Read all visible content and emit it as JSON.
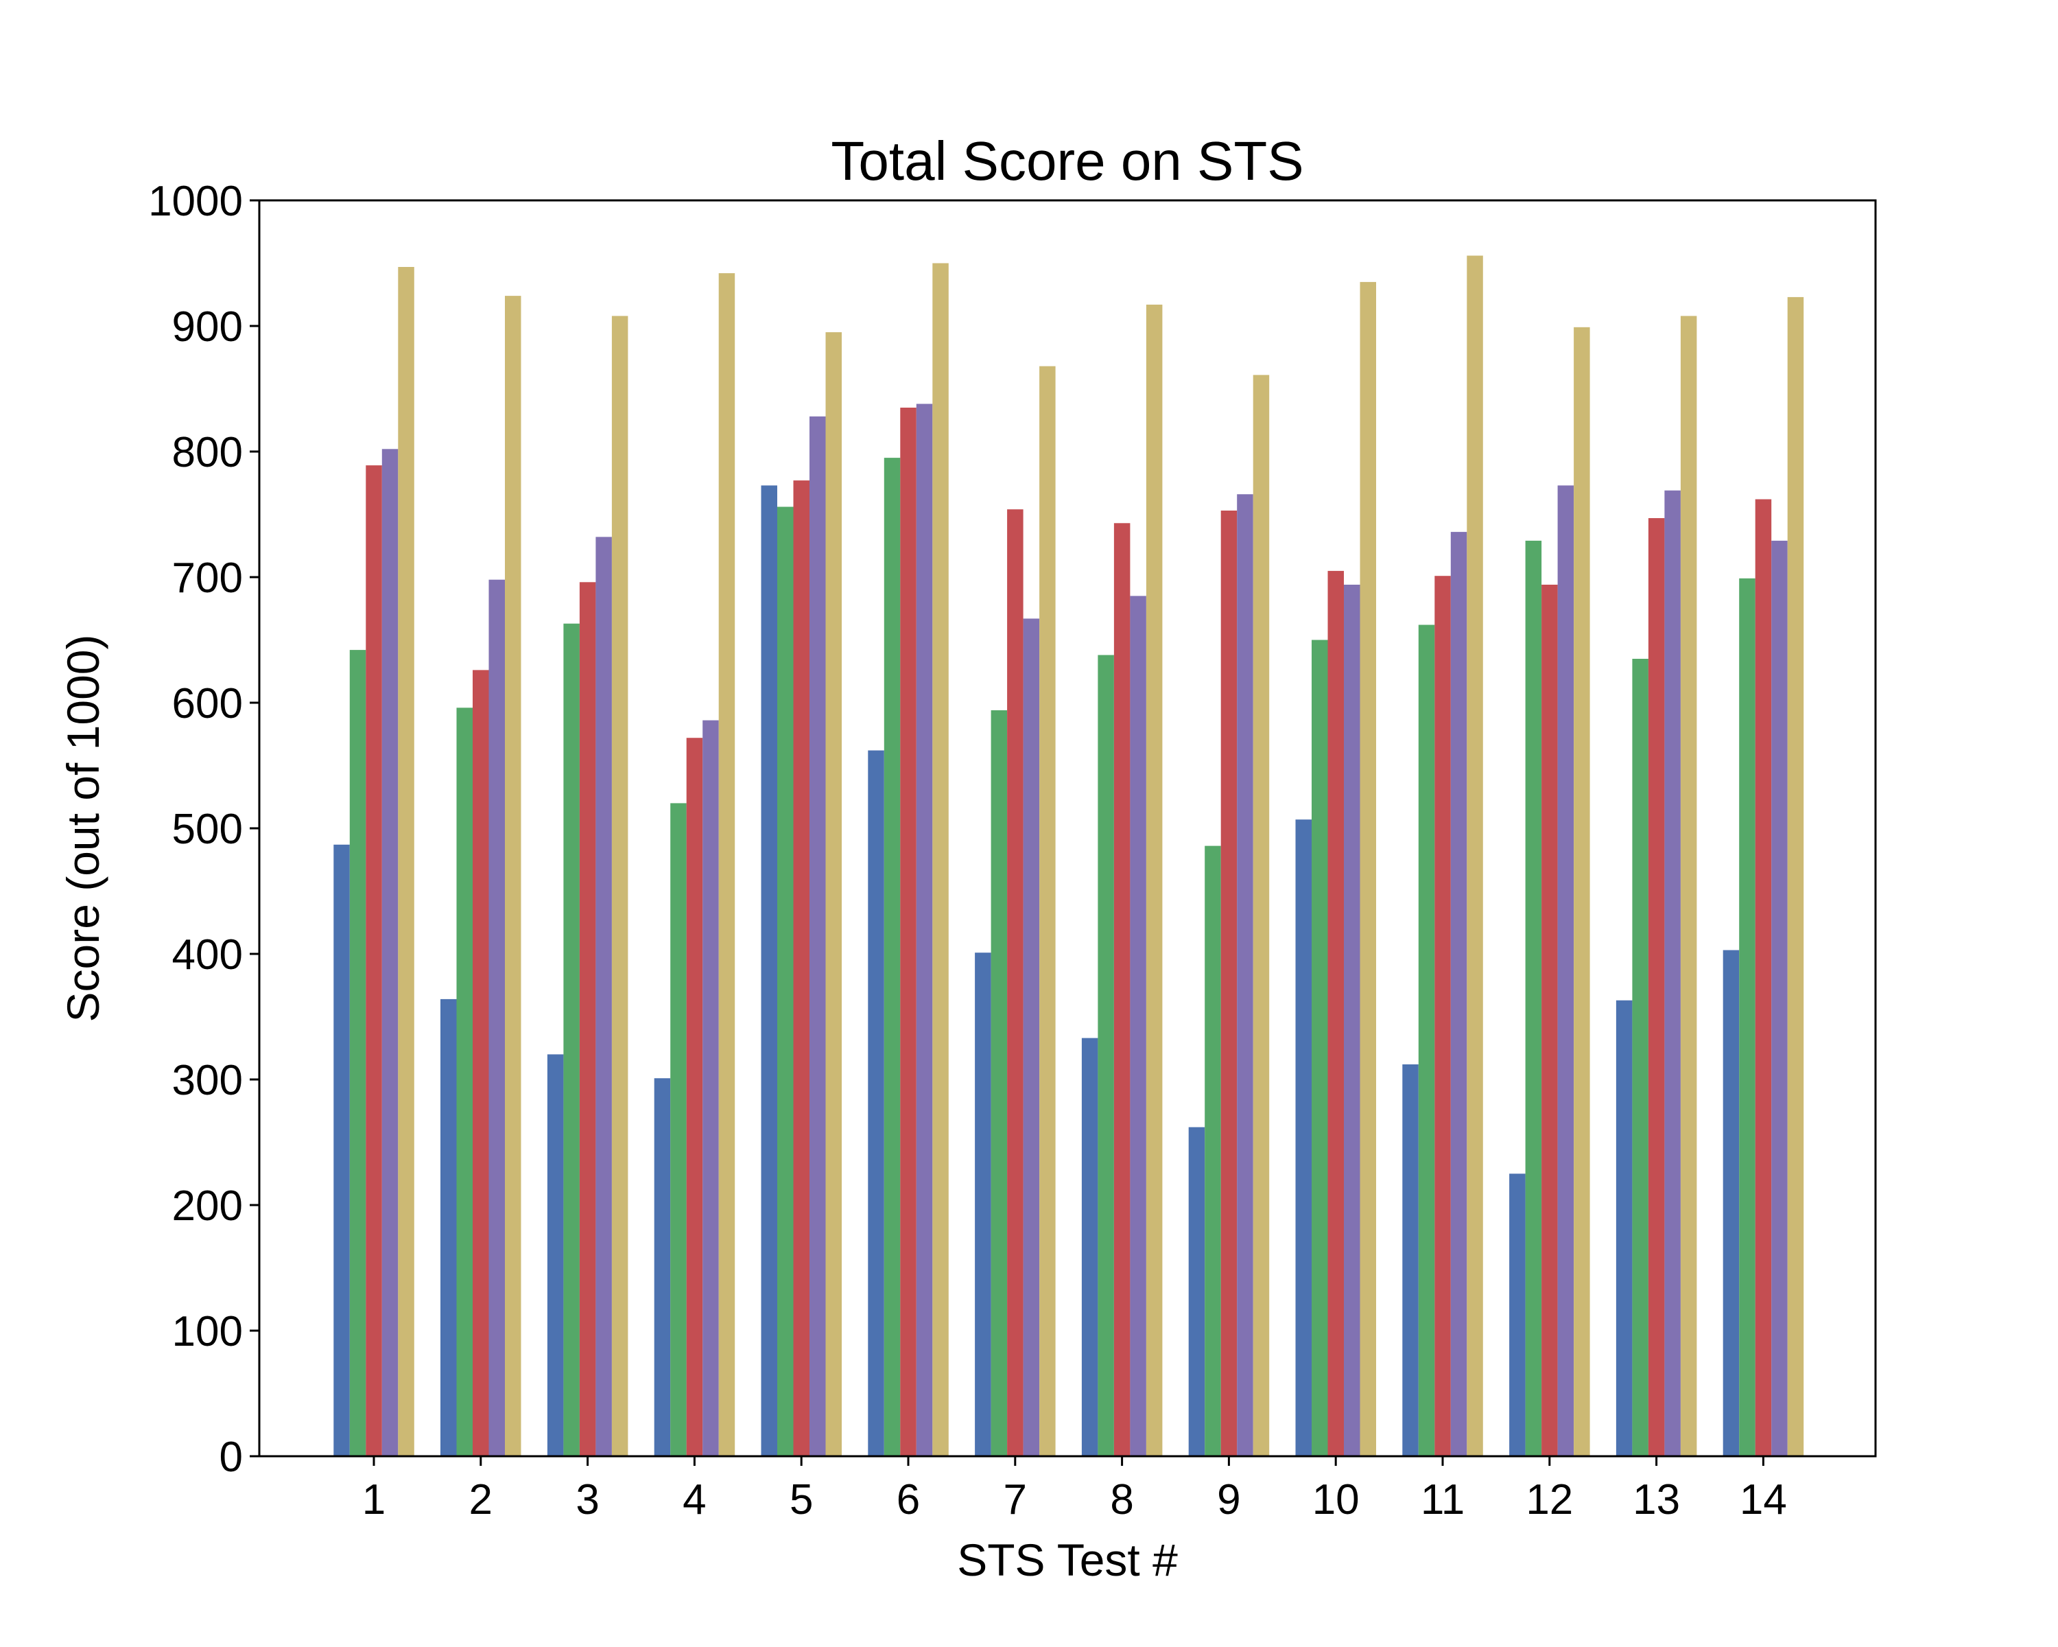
{
  "chart_data": {
    "type": "bar",
    "title": "Total Score on STS",
    "xlabel": "STS Test #",
    "ylabel": "Score (out of 1000)",
    "ylim": [
      0,
      1000
    ],
    "yticks": [
      0,
      100,
      200,
      300,
      400,
      500,
      600,
      700,
      800,
      900,
      1000
    ],
    "categories": [
      "1",
      "2",
      "3",
      "4",
      "5",
      "6",
      "7",
      "8",
      "9",
      "10",
      "11",
      "12",
      "13",
      "14"
    ],
    "grid": false,
    "legend": "none",
    "series": [
      {
        "color": "#4C72B0",
        "values": [
          487,
          364,
          320,
          301,
          773,
          562,
          401,
          333,
          262,
          507,
          312,
          225,
          363,
          403
        ]
      },
      {
        "color": "#55A868",
        "values": [
          642,
          596,
          663,
          520,
          756,
          795,
          594,
          638,
          486,
          650,
          662,
          729,
          635,
          699
        ]
      },
      {
        "color": "#C44E52",
        "values": [
          789,
          626,
          696,
          572,
          777,
          835,
          754,
          743,
          753,
          705,
          701,
          694,
          747,
          762
        ]
      },
      {
        "color": "#8172B2",
        "values": [
          802,
          698,
          732,
          586,
          828,
          838,
          667,
          685,
          766,
          694,
          736,
          773,
          769,
          729
        ]
      },
      {
        "color": "#CCB974",
        "values": [
          947,
          924,
          908,
          942,
          895,
          950,
          868,
          917,
          861,
          935,
          956,
          899,
          908,
          923
        ]
      }
    ]
  }
}
